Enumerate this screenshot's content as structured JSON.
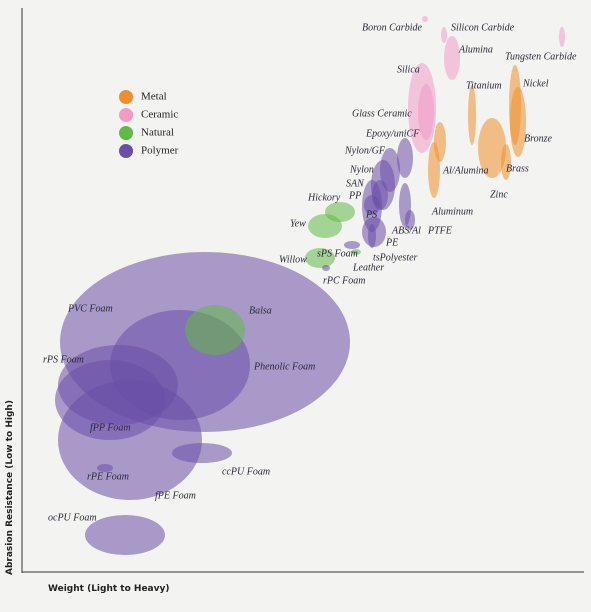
{
  "chart": {
    "type": "bubble",
    "x_axis_title": "Weight (Light to Heavy)",
    "y_axis_title": "Abrasion Resistance (Low to High)",
    "classes": [
      {
        "name": "Metal",
        "color": "#ee8f2c",
        "materials": [
          "Titanium",
          "Nickel",
          "Bronze",
          "Brass",
          "Zinc",
          "Al/Alumina",
          "Aluminum"
        ]
      },
      {
        "name": "Ceramic",
        "color": "#f19bc6",
        "materials": [
          "Boron Carbide",
          "Silicon Carbide",
          "Alumina",
          "Tungsten Carbide",
          "Silica",
          "Glass Ceramic"
        ]
      },
      {
        "name": "Natural",
        "color": "#62b946",
        "materials": [
          "Hickory",
          "Yew",
          "Willow",
          "Balsa",
          "Leather"
        ]
      },
      {
        "name": "Polymer",
        "color": "#6a4fa8",
        "materials": [
          "Epoxy/uniCF",
          "Nylon/GF",
          "Nylon",
          "SAN",
          "PP",
          "PS",
          "ABS/Al",
          "PTFE",
          "PE",
          "sPS Foam",
          "tsPolyester",
          "rPC Foam",
          "PVC Foam",
          "rPS Foam",
          "Phenolic Foam",
          "fPP Foam",
          "ccPU Foam",
          "rPE Foam",
          "fPE Foam",
          "ocPU Foam"
        ]
      }
    ]
  }
}
